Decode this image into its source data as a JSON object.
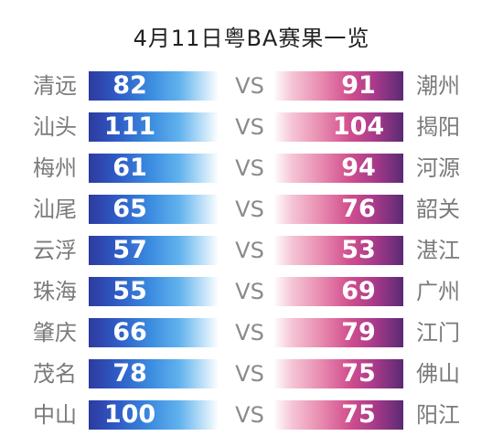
{
  "title": "4月11日粤BA赛果一览",
  "vs_label": "VS",
  "colors": {
    "left_bar_start": "#2d3a9e",
    "left_bar_mid": "#3b8de0",
    "right_bar_mid": "#d2508f",
    "right_bar_end": "#5a2a73"
  },
  "matches": [
    {
      "home": "清远",
      "home_score": "82",
      "away_score": "91",
      "away": "潮州"
    },
    {
      "home": "汕头",
      "home_score": "111",
      "away_score": "104",
      "away": "揭阳"
    },
    {
      "home": "梅州",
      "home_score": "61",
      "away_score": "94",
      "away": "河源"
    },
    {
      "home": "汕尾",
      "home_score": "65",
      "away_score": "76",
      "away": "韶关"
    },
    {
      "home": "云浮",
      "home_score": "57",
      "away_score": "53",
      "away": "湛江"
    },
    {
      "home": "珠海",
      "home_score": "55",
      "away_score": "69",
      "away": "广州"
    },
    {
      "home": "肇庆",
      "home_score": "66",
      "away_score": "79",
      "away": "江门"
    },
    {
      "home": "茂名",
      "home_score": "78",
      "away_score": "75",
      "away": "佛山"
    },
    {
      "home": "中山",
      "home_score": "100",
      "away_score": "75",
      "away": "阳江"
    }
  ]
}
